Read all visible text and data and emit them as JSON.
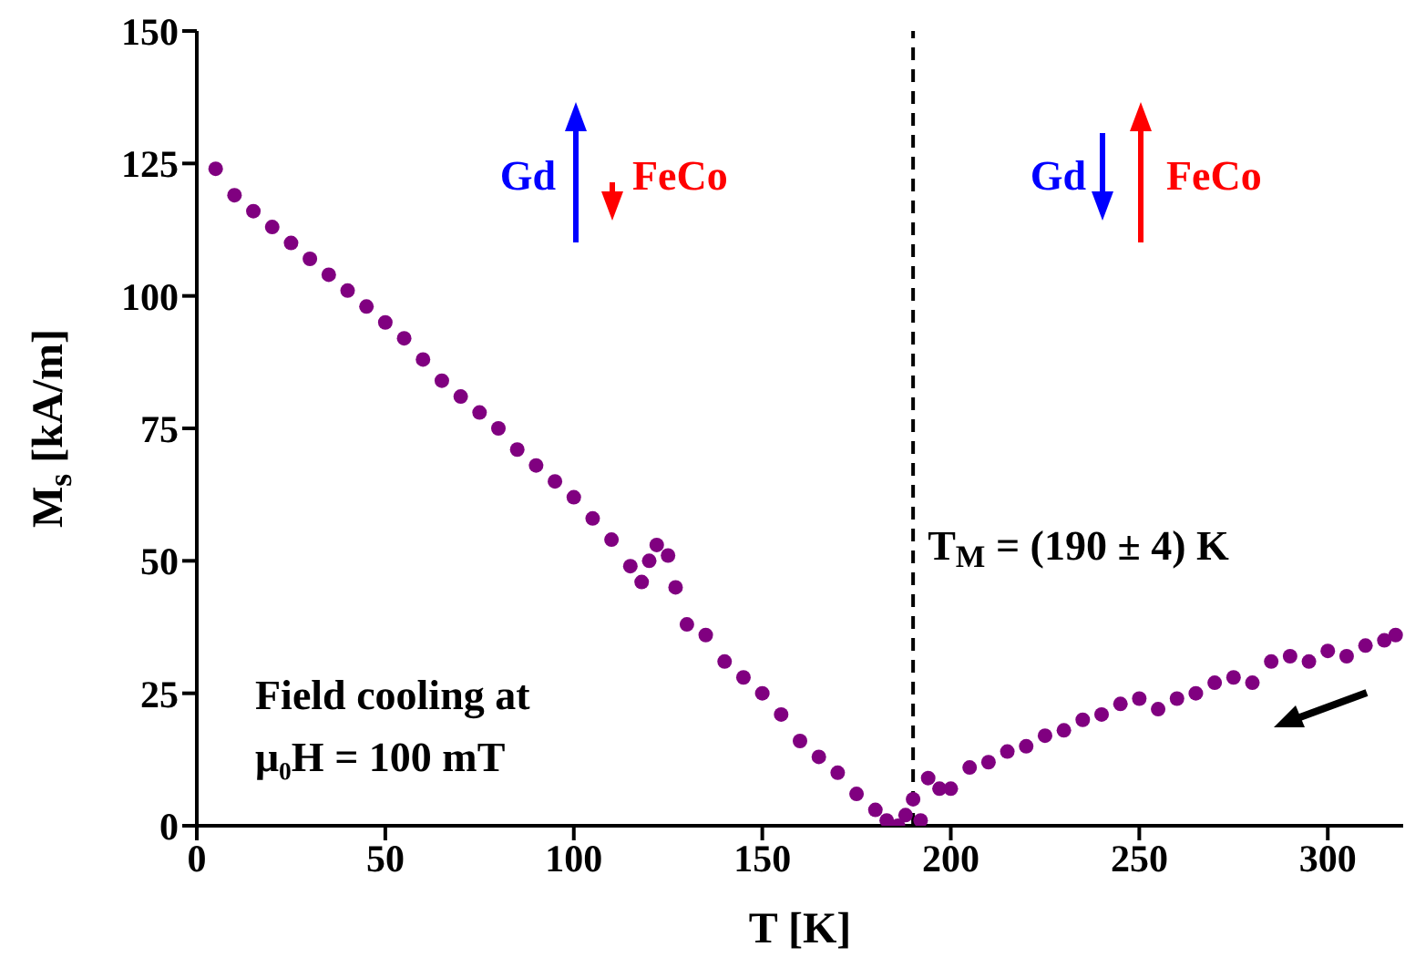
{
  "chart_data": {
    "type": "scatter",
    "xlabel": "T [K]",
    "ylabel": "M$_{s}$ [kA/m]",
    "xlim": [
      0,
      320
    ],
    "ylim": [
      0,
      150
    ],
    "xticks": [
      0,
      50,
      100,
      150,
      200,
      250,
      300
    ],
    "yticks": [
      0,
      25,
      50,
      75,
      100,
      125,
      150
    ],
    "marker": "circle",
    "series": [
      {
        "color": "#800080",
        "x": [
          5,
          10,
          15,
          20,
          25,
          30,
          35,
          40,
          45,
          50,
          55,
          60,
          65,
          70,
          75,
          80,
          85,
          90,
          95,
          100,
          105,
          110,
          115,
          118,
          120,
          122,
          125,
          127,
          130,
          135,
          140,
          145,
          150,
          155,
          160,
          165,
          170,
          175,
          180,
          183,
          186,
          188,
          190,
          192,
          194,
          197,
          200,
          205,
          210,
          215,
          220,
          225,
          230,
          235,
          240,
          245,
          250,
          255,
          260,
          265,
          270,
          275,
          280,
          285,
          290,
          295,
          300,
          305,
          310,
          315,
          318
        ],
        "values": [
          124,
          119,
          116,
          113,
          110,
          107,
          104,
          101,
          98,
          95,
          92,
          88,
          84,
          81,
          78,
          75,
          71,
          68,
          65,
          62,
          58,
          54,
          49,
          46,
          50,
          53,
          51,
          45,
          38,
          36,
          31,
          28,
          25,
          21,
          16,
          13,
          10,
          6,
          3,
          1,
          0,
          2,
          5,
          1,
          9,
          7,
          7,
          11,
          12,
          14,
          15,
          17,
          18,
          20,
          21,
          23,
          24,
          22,
          24,
          25,
          27,
          28,
          27,
          31,
          32,
          31,
          33,
          32,
          34,
          35,
          36
        ]
      }
    ],
    "ref_lines": [
      {
        "axis": "x",
        "value": 190,
        "label": "T$_{M}$ = (190 ± 4) K",
        "color": "#000000",
        "line_style": "dashed"
      }
    ],
    "annotations": [
      "Gd",
      "FeCo",
      "Gd",
      "FeCo",
      "Field cooling at",
      "μ₀H = 100 mT"
    ]
  }
}
